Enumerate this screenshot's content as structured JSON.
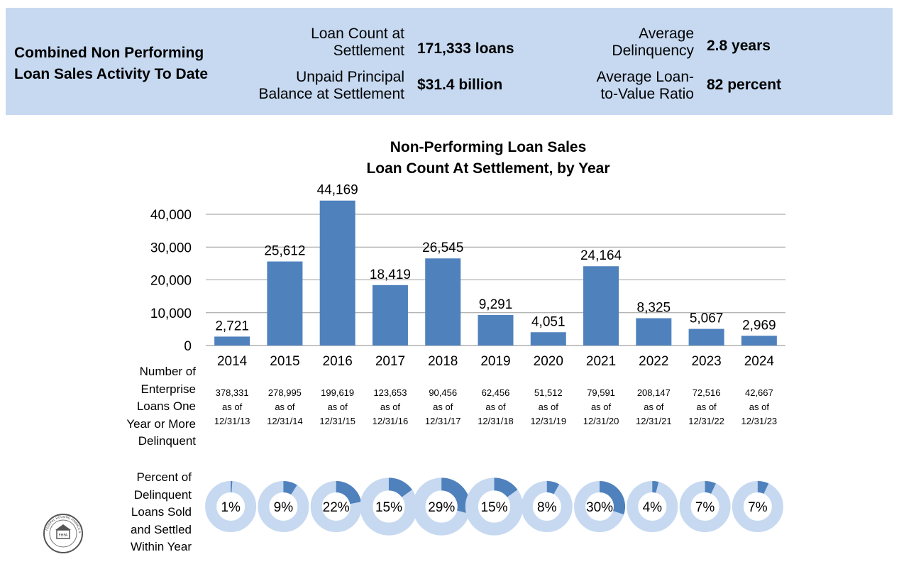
{
  "banner": {
    "title_line1": "Combined Non Performing",
    "title_line2": "Loan Sales Activity To Date",
    "loan_count_label_1": "Loan Count at",
    "loan_count_label_2": "Settlement",
    "loan_count_value": "171,333 loans",
    "upb_label_1": "Unpaid Principal",
    "upb_label_2": "Balance at Settlement",
    "upb_value": "$31.4 billion",
    "delinq_label_1": "Average",
    "delinq_label_2": "Delinquency",
    "delinq_value": "2.8 years",
    "ltv_label_1": "Average Loan-",
    "ltv_label_2": "to-Value Ratio",
    "ltv_value": "82 percent"
  },
  "chart_data": {
    "type": "bar",
    "title_line1": "Non-Performing Loan Sales",
    "title_line2": "Loan Count At Settlement, by Year",
    "categories": [
      "2014",
      "2015",
      "2016",
      "2017",
      "2018",
      "2019",
      "2020",
      "2021",
      "2022",
      "2023",
      "2024"
    ],
    "values": [
      2721,
      25612,
      44169,
      18419,
      26545,
      9291,
      4051,
      24164,
      8325,
      5067,
      2969
    ],
    "value_labels": [
      "2,721",
      "25,612",
      "44,169",
      "18,419",
      "26,545",
      "9,291",
      "4,051",
      "24,164",
      "8,325",
      "5,067",
      "2,969"
    ],
    "ylim": [
      0,
      40000
    ],
    "yticks": [
      0,
      10000,
      20000,
      30000,
      40000
    ],
    "ytick_labels": [
      "0",
      "10,000",
      "20,000",
      "30,000",
      "40,000"
    ],
    "grid": true,
    "bar_color": "#4f81bd",
    "delinquent_row": {
      "label_lines": [
        "Number of",
        "Enterprise",
        "Loans One",
        "Year or More",
        "Delinquent"
      ],
      "counts": [
        "378,331",
        "278,995",
        "199,619",
        "123,653",
        "90,456",
        "62,456",
        "51,512",
        "79,591",
        "208,147",
        "72,516",
        "42,667"
      ],
      "as_of_text": "as of",
      "dates": [
        "12/31/13",
        "12/31/14",
        "12/31/15",
        "12/31/16",
        "12/31/17",
        "12/31/18",
        "12/31/19",
        "12/31/20",
        "12/31/21",
        "12/31/22",
        "12/31/23"
      ]
    },
    "percent_row": {
      "label_lines": [
        "Percent of",
        "Delinquent",
        "Loans Sold",
        "and Settled",
        "Within Year"
      ],
      "values": [
        1,
        9,
        22,
        15,
        29,
        15,
        8,
        30,
        4,
        7,
        7
      ],
      "labels": [
        "1%",
        "9%",
        "22%",
        "15%",
        "29%",
        "15%",
        "8%",
        "30%",
        "4%",
        "7%",
        "7%"
      ],
      "ring_color": "#c6d9f1",
      "fill_color": "#4f81bd"
    }
  },
  "seal": {
    "text": "FEDERAL HOUSING FINANCE AGENCY",
    "center_text": "FHFA"
  }
}
